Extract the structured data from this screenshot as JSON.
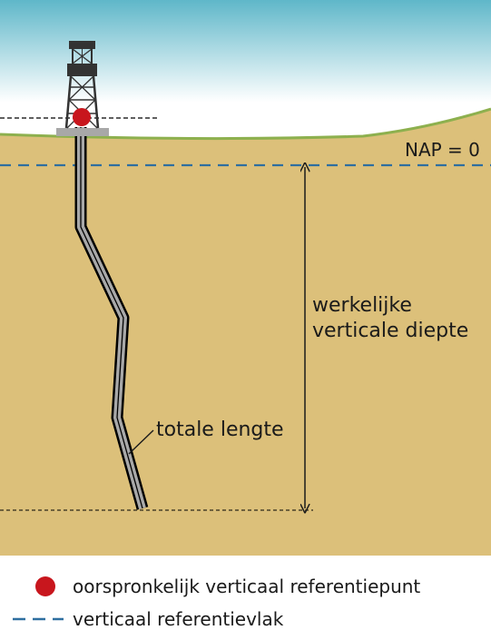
{
  "labels": {
    "nap": "NAP = 0",
    "depth_line1": "werkelijke",
    "depth_line2": "verticale diepte",
    "length": "totale lengte"
  },
  "legend": {
    "point": "oorspronkelijk verticaal referentiepunt",
    "plane": "verticaal referentievlak"
  },
  "colors": {
    "sky_top": "#5fb7c9",
    "sky_bottom": "#ffffff",
    "soil": "#dcc07a",
    "grass": "#8db04e",
    "nap_line": "#2f6fa0",
    "reference_point": "#c8161d",
    "well_casing": "#a8a8a8",
    "rig": "#333333"
  }
}
